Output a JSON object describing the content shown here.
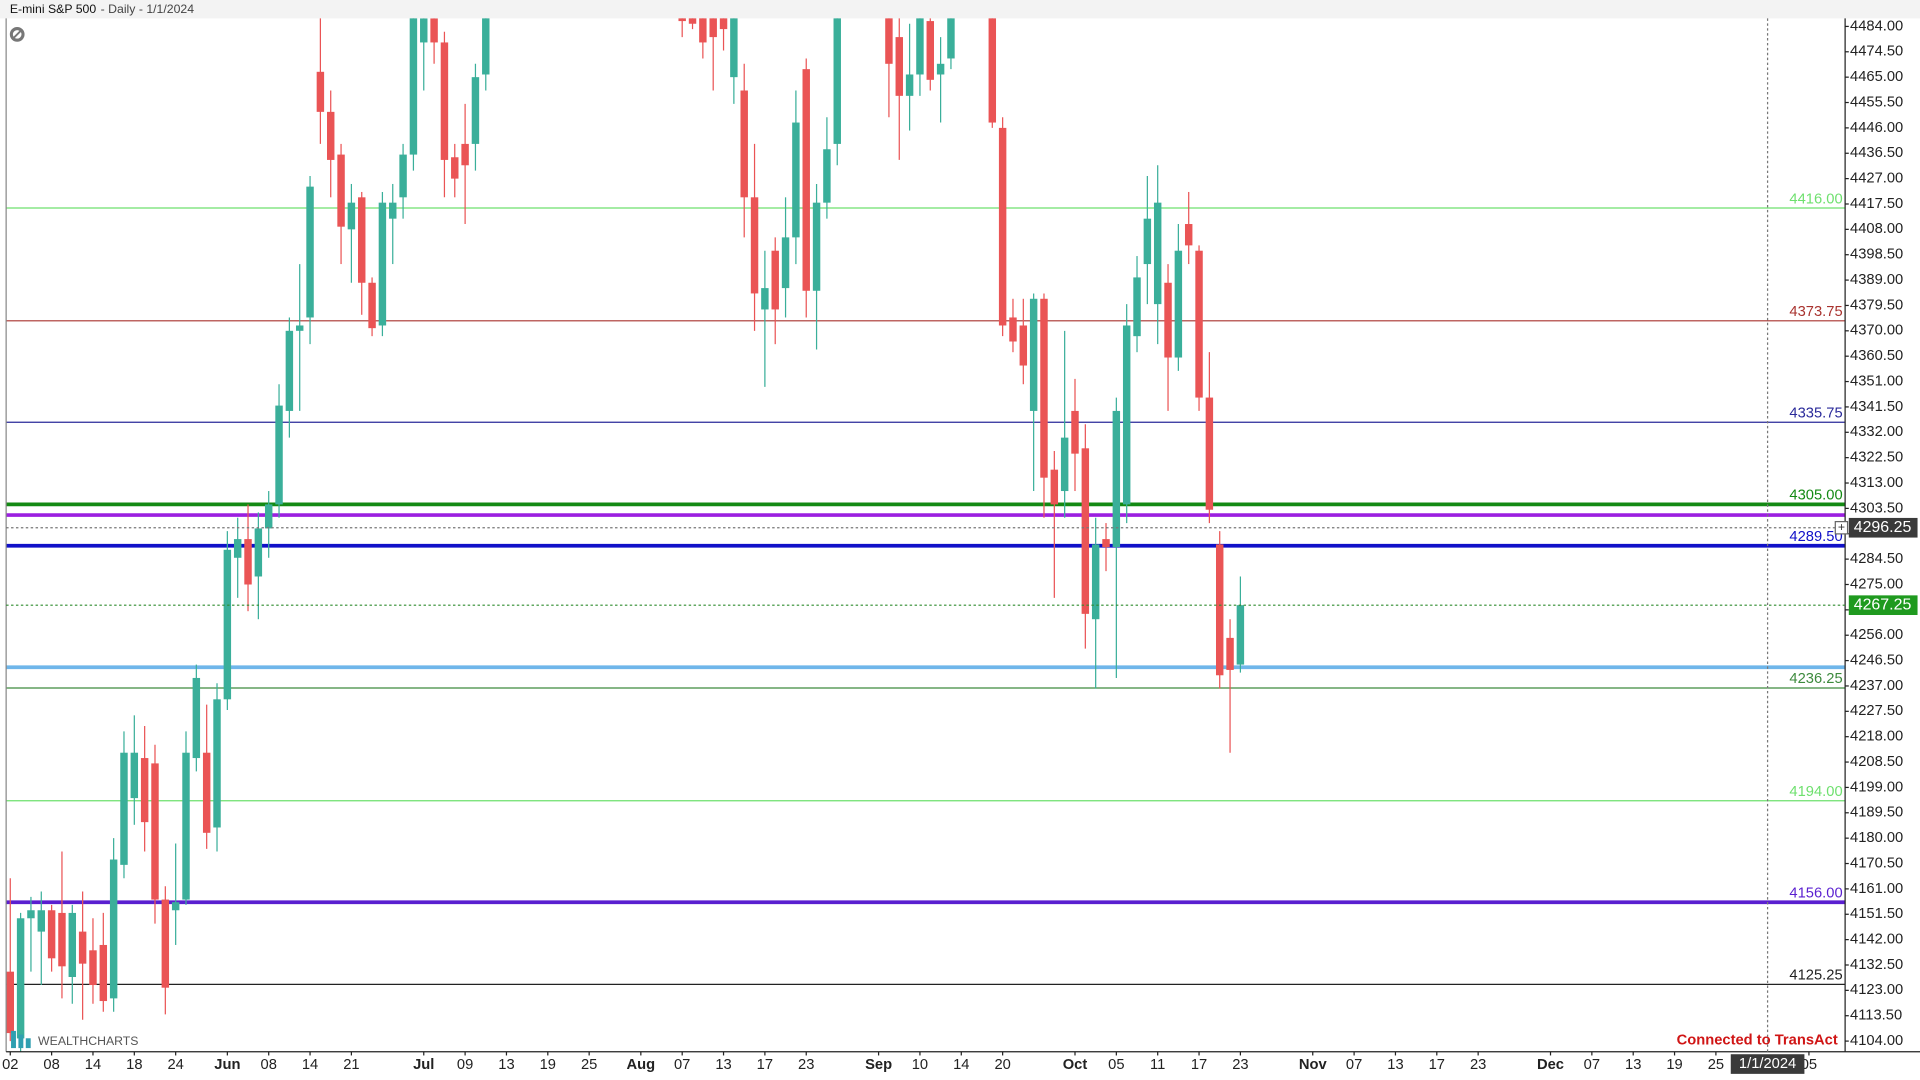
{
  "chart_data": {
    "type": "candlestick",
    "title": "E-mini S&P 500",
    "subtitle": "- Daily - 1/1/2024",
    "logo": "WEALTHCHARTS",
    "status": "Connected to TransAct",
    "up_color": "#3aaf9a",
    "down_color": "#ea5455",
    "xlim": [
      -0.4,
      177.5
    ],
    "ylim": [
      4100,
      4487
    ],
    "xticks": [
      {
        "value": 0,
        "label": "02"
      },
      {
        "value": 4,
        "label": "08"
      },
      {
        "value": 8,
        "label": "14"
      },
      {
        "value": 12,
        "label": "18"
      },
      {
        "value": 16,
        "label": "24"
      },
      {
        "value": 21,
        "label": "Jun"
      },
      {
        "value": 25,
        "label": "08"
      },
      {
        "value": 29,
        "label": "14"
      },
      {
        "value": 33,
        "label": "21"
      },
      {
        "value": 40,
        "label": "Jul"
      },
      {
        "value": 44,
        "label": "09"
      },
      {
        "value": 48,
        "label": "13"
      },
      {
        "value": 52,
        "label": "19"
      },
      {
        "value": 56,
        "label": "25"
      },
      {
        "value": 61,
        "label": "Aug"
      },
      {
        "value": 65,
        "label": "07"
      },
      {
        "value": 69,
        "label": "13"
      },
      {
        "value": 73,
        "label": "17"
      },
      {
        "value": 77,
        "label": "23"
      },
      {
        "value": 84,
        "label": "Sep"
      },
      {
        "value": 88,
        "label": "10"
      },
      {
        "value": 92,
        "label": "14"
      },
      {
        "value": 96,
        "label": "20"
      },
      {
        "value": 103,
        "label": "Oct"
      },
      {
        "value": 107,
        "label": "05"
      },
      {
        "value": 111,
        "label": "11"
      },
      {
        "value": 115,
        "label": "17"
      },
      {
        "value": 119,
        "label": "23"
      },
      {
        "value": 126,
        "label": "Nov"
      },
      {
        "value": 130,
        "label": "07"
      },
      {
        "value": 134,
        "label": "13"
      },
      {
        "value": 138,
        "label": "17"
      },
      {
        "value": 142,
        "label": "23"
      },
      {
        "value": 149,
        "label": "Dec"
      },
      {
        "value": 153,
        "label": "07"
      },
      {
        "value": 157,
        "label": "13"
      },
      {
        "value": 161,
        "label": "19"
      },
      {
        "value": 165,
        "label": "25"
      },
      {
        "value": 174,
        "label": "05"
      }
    ],
    "yticks": [
      {
        "value": 4104,
        "label": "4104.00"
      },
      {
        "value": 4113.5,
        "label": "4113.50"
      },
      {
        "value": 4123,
        "label": "4123.00"
      },
      {
        "value": 4132.5,
        "label": "4132.50"
      },
      {
        "value": 4142,
        "label": "4142.00"
      },
      {
        "value": 4151.5,
        "label": "4151.50"
      },
      {
        "value": 4161,
        "label": "4161.00"
      },
      {
        "value": 4170.5,
        "label": "4170.50"
      },
      {
        "value": 4180,
        "label": "4180.00"
      },
      {
        "value": 4189.5,
        "label": "4189.50"
      },
      {
        "value": 4199,
        "label": "4199.00"
      },
      {
        "value": 4208.5,
        "label": "4208.50"
      },
      {
        "value": 4218,
        "label": "4218.00"
      },
      {
        "value": 4227.5,
        "label": "4227.50"
      },
      {
        "value": 4237,
        "label": "4237.00"
      },
      {
        "value": 4246.5,
        "label": "4246.50"
      },
      {
        "value": 4256,
        "label": "4256.00"
      },
      {
        "value": 4265.5,
        "label": "4265.50"
      },
      {
        "value": 4275,
        "label": "4275.00"
      },
      {
        "value": 4284.5,
        "label": "4284.50"
      },
      {
        "value": 4294,
        "label": "4294.00"
      },
      {
        "value": 4303.5,
        "label": "4303.50"
      },
      {
        "value": 4313,
        "label": "4313.00"
      },
      {
        "value": 4322.5,
        "label": "4322.50"
      },
      {
        "value": 4332,
        "label": "4332.00"
      },
      {
        "value": 4341.5,
        "label": "4341.50"
      },
      {
        "value": 4351,
        "label": "4351.00"
      },
      {
        "value": 4360.5,
        "label": "4360.50"
      },
      {
        "value": 4370,
        "label": "4370.00"
      },
      {
        "value": 4379.5,
        "label": "4379.50"
      },
      {
        "value": 4389,
        "label": "4389.00"
      },
      {
        "value": 4398.5,
        "label": "4398.50"
      },
      {
        "value": 4408,
        "label": "4408.00"
      },
      {
        "value": 4417.5,
        "label": "4417.50"
      },
      {
        "value": 4427,
        "label": "4427.00"
      },
      {
        "value": 4436.5,
        "label": "4436.50"
      },
      {
        "value": 4446,
        "label": "4446.00"
      },
      {
        "value": 4455.5,
        "label": "4455.50"
      },
      {
        "value": 4465,
        "label": "4465.00"
      },
      {
        "value": 4474.5,
        "label": "4474.50"
      },
      {
        "value": 4484,
        "label": "4484.00"
      }
    ],
    "price_lines": [
      {
        "value": 4416,
        "label": "4416.00",
        "color": "#6ee06e",
        "width": 1
      },
      {
        "value": 4373.75,
        "label": "4373.75",
        "color": "#a8322e",
        "width": 1
      },
      {
        "value": 4335.75,
        "label": "4335.75",
        "color": "#2a2a9a",
        "width": 1
      },
      {
        "value": 4305,
        "label": "4305.00",
        "color": "#138a13",
        "width": 3
      },
      {
        "value": 4301,
        "color": "#9b1fe0",
        "width": 3
      },
      {
        "value": 4289.5,
        "label": "4289.50",
        "color": "#1010c8",
        "width": 3
      },
      {
        "value": 4244,
        "color": "#6fb6ea",
        "width": 3
      },
      {
        "value": 4236.25,
        "label": "4236.25",
        "color": "#3d8a3d",
        "width": 1
      },
      {
        "value": 4194,
        "label": "4194.00",
        "color": "#6ee06e",
        "width": 1
      },
      {
        "value": 4156,
        "label": "4156.00",
        "color": "#5a1fd0",
        "width": 3
      },
      {
        "value": 4125.25,
        "label": "4125.25",
        "color": "#222222",
        "width": 1
      }
    ],
    "crosshair": {
      "x": 170,
      "x_label": "1/1/2024",
      "price": 4296.25
    },
    "last_price": 4267.25,
    "x": [
      0,
      1,
      2,
      3,
      4,
      5,
      6,
      7,
      8,
      9,
      10,
      11,
      12,
      13,
      14,
      15,
      16,
      17,
      18,
      19,
      20,
      21,
      22,
      23,
      24,
      25,
      26,
      27,
      28,
      29,
      30,
      31,
      32,
      33,
      34,
      35,
      36,
      37,
      38,
      39,
      40,
      41,
      42,
      43,
      44,
      45,
      46,
      65,
      66,
      67,
      68,
      69,
      70,
      71,
      72,
      73,
      74,
      75,
      76,
      77,
      78,
      79,
      80,
      85,
      86,
      87,
      88,
      89,
      90,
      91,
      95,
      96,
      97,
      98,
      99,
      100,
      101,
      102,
      103,
      104,
      105,
      106,
      107,
      108,
      109,
      110,
      111,
      112,
      113,
      114,
      115,
      116,
      117,
      118,
      119
    ],
    "ohlc": [
      [
        4130,
        4165,
        4104,
        4107
      ],
      [
        4105,
        4152,
        4100,
        4150
      ],
      [
        4150,
        4158,
        4130,
        4153
      ],
      [
        4145,
        4160,
        4125,
        4153
      ],
      [
        4153,
        4155,
        4130,
        4135
      ],
      [
        4152,
        4175,
        4120,
        4132
      ],
      [
        4128,
        4155,
        4118,
        4152
      ],
      [
        4145,
        4160,
        4112,
        4133
      ],
      [
        4138,
        4150,
        4118,
        4125
      ],
      [
        4140,
        4152,
        4115,
        4119
      ],
      [
        4120,
        4180,
        4115,
        4172
      ],
      [
        4170,
        4220,
        4165,
        4212
      ],
      [
        4195,
        4226,
        4185,
        4212
      ],
      [
        4210,
        4222,
        4175,
        4186
      ],
      [
        4208,
        4215,
        4148,
        4157
      ],
      [
        4157,
        4162,
        4114,
        4124
      ],
      [
        4153,
        4178,
        4140,
        4156
      ],
      [
        4157,
        4220,
        4155,
        4212
      ],
      [
        4210,
        4245,
        4205,
        4240
      ],
      [
        4212,
        4230,
        4176,
        4182
      ],
      [
        4184,
        4238,
        4175,
        4232
      ],
      [
        4232,
        4295,
        4228,
        4288
      ],
      [
        4285,
        4300,
        4270,
        4292
      ],
      [
        4292,
        4305,
        4265,
        4275
      ],
      [
        4278,
        4302,
        4262,
        4296
      ],
      [
        4296,
        4310,
        4285,
        4305
      ],
      [
        4305,
        4350,
        4300,
        4342
      ],
      [
        4340,
        4375,
        4330,
        4370
      ],
      [
        4370,
        4395,
        4340,
        4372
      ],
      [
        4375,
        4428,
        4365,
        4424
      ],
      [
        4467,
        4488,
        4440,
        4452
      ],
      [
        4452,
        4460,
        4420,
        4434
      ],
      [
        4436,
        4440,
        4395,
        4409
      ],
      [
        4408,
        4425,
        4388,
        4418
      ],
      [
        4420,
        4422,
        4376,
        4388
      ],
      [
        4388,
        4390,
        4368,
        4371
      ],
      [
        4372,
        4422,
        4368,
        4418
      ],
      [
        4412,
        4425,
        4395,
        4418
      ],
      [
        4420,
        4440,
        4412,
        4436
      ],
      [
        4436,
        4490,
        4430,
        4488
      ],
      [
        4478,
        4492,
        4460,
        4487
      ],
      [
        4487,
        4490,
        4470,
        4478
      ],
      [
        4478,
        4482,
        4420,
        4434
      ],
      [
        4435,
        4440,
        4420,
        4427
      ],
      [
        4440,
        4455,
        4410,
        4432
      ],
      [
        4440,
        4470,
        4430,
        4465
      ],
      [
        4466,
        4495,
        4460,
        4490
      ],
      [
        4492,
        4500,
        4480,
        4486
      ],
      [
        4490,
        4500,
        4483,
        4485
      ],
      [
        4488,
        4495,
        4472,
        4478
      ],
      [
        4490,
        4500,
        4460,
        4480
      ],
      [
        4492,
        4500,
        4475,
        4483
      ],
      [
        4465,
        4495,
        4455,
        4490
      ],
      [
        4460,
        4470,
        4405,
        4420
      ],
      [
        4420,
        4440,
        4370,
        4384
      ],
      [
        4378,
        4400,
        4349,
        4386
      ],
      [
        4400,
        4405,
        4365,
        4378
      ],
      [
        4386,
        4420,
        4375,
        4405
      ],
      [
        4405,
        4460,
        4395,
        4448
      ],
      [
        4468,
        4472,
        4375,
        4385
      ],
      [
        4385,
        4425,
        4363,
        4418
      ],
      [
        4418,
        4450,
        4412,
        4438
      ],
      [
        4440,
        4495,
        4432,
        4490
      ],
      [
        4495,
        4500,
        4450,
        4470
      ],
      [
        4480,
        4490,
        4434,
        4458
      ],
      [
        4458,
        4485,
        4445,
        4466
      ],
      [
        4466,
        4495,
        4458,
        4488
      ],
      [
        4486,
        4495,
        4460,
        4464
      ],
      [
        4466,
        4480,
        4448,
        4470
      ],
      [
        4472,
        4495,
        4468,
        4490
      ],
      [
        4495,
        4500,
        4446,
        4448
      ],
      [
        4446,
        4450,
        4368,
        4372
      ],
      [
        4375,
        4382,
        4362,
        4366
      ],
      [
        4372,
        4382,
        4350,
        4357
      ],
      [
        4340,
        4384,
        4310,
        4382
      ],
      [
        4382,
        4384,
        4300,
        4315
      ],
      [
        4318,
        4325,
        4270,
        4305
      ],
      [
        4310,
        4370,
        4300,
        4330
      ],
      [
        4340,
        4352,
        4310,
        4324
      ],
      [
        4326,
        4335,
        4251,
        4264
      ],
      [
        4262,
        4300,
        4236,
        4290
      ],
      [
        4292,
        4298,
        4280,
        4289
      ],
      [
        4289,
        4345,
        4240,
        4340
      ],
      [
        4305,
        4380,
        4298,
        4372
      ],
      [
        4368,
        4398,
        4362,
        4390
      ],
      [
        4395,
        4428,
        4380,
        4412
      ],
      [
        4380,
        4432,
        4365,
        4418
      ],
      [
        4388,
        4395,
        4340,
        4360
      ],
      [
        4360,
        4410,
        4355,
        4400
      ],
      [
        4410,
        4422,
        4395,
        4402
      ],
      [
        4400,
        4402,
        4340,
        4345
      ],
      [
        4345,
        4362,
        4298,
        4303
      ],
      [
        4290,
        4295,
        4236,
        4241
      ],
      [
        4255,
        4262,
        4212,
        4243
      ],
      [
        4245,
        4278,
        4242,
        4267.25
      ]
    ]
  }
}
